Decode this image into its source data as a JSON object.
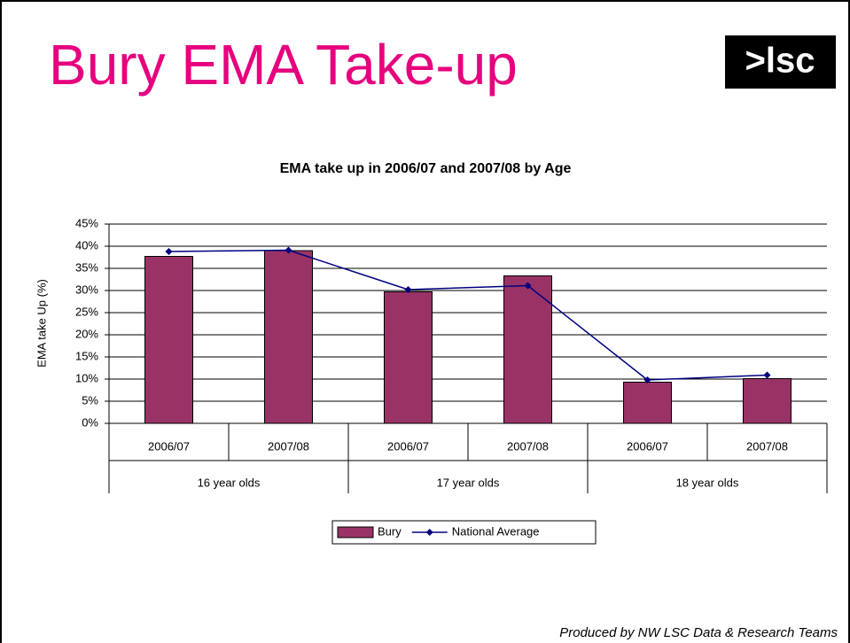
{
  "header": {
    "title": "Bury EMA Take-up",
    "logo": ">lsc"
  },
  "chart_data": {
    "type": "bar",
    "title": "EMA take up in 2006/07 and 2007/08 by Age",
    "y_label": "EMA take Up (%)",
    "categories": [
      "2006/07",
      "2007/08",
      "2006/07",
      "2007/08",
      "2006/07",
      "2007/08"
    ],
    "groups": [
      "16 year olds",
      "17 year olds",
      "18 year olds"
    ],
    "series": [
      {
        "name": "Bury",
        "type": "bar",
        "color": "#993366",
        "values": [
          37.7,
          39,
          29.7,
          33.3,
          9.3,
          10.1
        ]
      },
      {
        "name": "National Average",
        "type": "line",
        "color": "#000080",
        "values": [
          38.8,
          39.1,
          30.2,
          31.1,
          9.8,
          10.9
        ]
      }
    ],
    "ylim": [
      0,
      45
    ],
    "yticks": [
      {
        "value": 0,
        "label": "0%"
      },
      {
        "value": 5,
        "label": "5%"
      },
      {
        "value": 10,
        "label": "10%"
      },
      {
        "value": 15,
        "label": "15%"
      },
      {
        "value": 20,
        "label": "20%"
      },
      {
        "value": 25,
        "label": "25%"
      },
      {
        "value": 30,
        "label": "30%"
      },
      {
        "value": 35,
        "label": "35%"
      },
      {
        "value": 40,
        "label": "40%"
      },
      {
        "value": 45,
        "label": "45%"
      }
    ],
    "grid": true,
    "legend": "bottom"
  },
  "footer": "Produced by NW LSC Data & Research Teams"
}
